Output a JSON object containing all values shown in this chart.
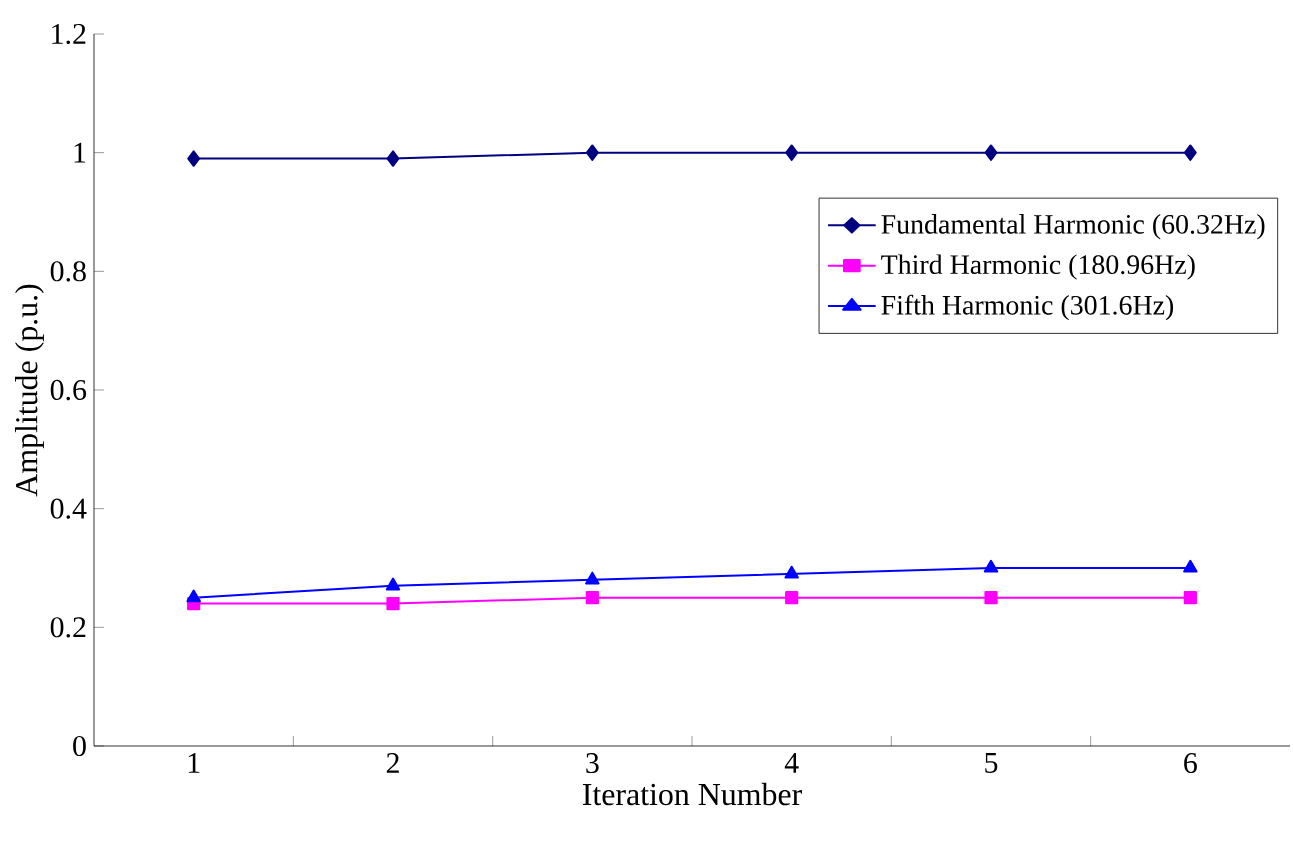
{
  "chart_data": {
    "type": "line",
    "xlabel": "Iteration Number",
    "ylabel": "Amplitude (p.u.)",
    "categories": [
      "1",
      "2",
      "3",
      "4",
      "5",
      "6"
    ],
    "ylim": [
      0,
      1.2
    ],
    "yticks": [
      0,
      0.2,
      0.4,
      0.6,
      0.8,
      1,
      1.2
    ],
    "grid": false,
    "legend": "right",
    "line_style": "solid",
    "series": [
      {
        "name": "Fundamental Harmonic (60.32Hz)",
        "color": "#000080",
        "marker": "diamond",
        "values": [
          0.99,
          0.99,
          1,
          1,
          1,
          1
        ]
      },
      {
        "name": "Third Harmonic (180.96Hz)",
        "color": "#ff00ff",
        "marker": "square",
        "values": [
          0.24,
          0.24,
          0.25,
          0.25,
          0.25,
          0.25
        ]
      },
      {
        "name": "Fifth Harmonic (301.6Hz)",
        "color": "#0000ff",
        "marker": "triangle",
        "values": [
          0.25,
          0.27,
          0.28,
          0.29,
          0.3,
          0.3
        ]
      }
    ]
  }
}
